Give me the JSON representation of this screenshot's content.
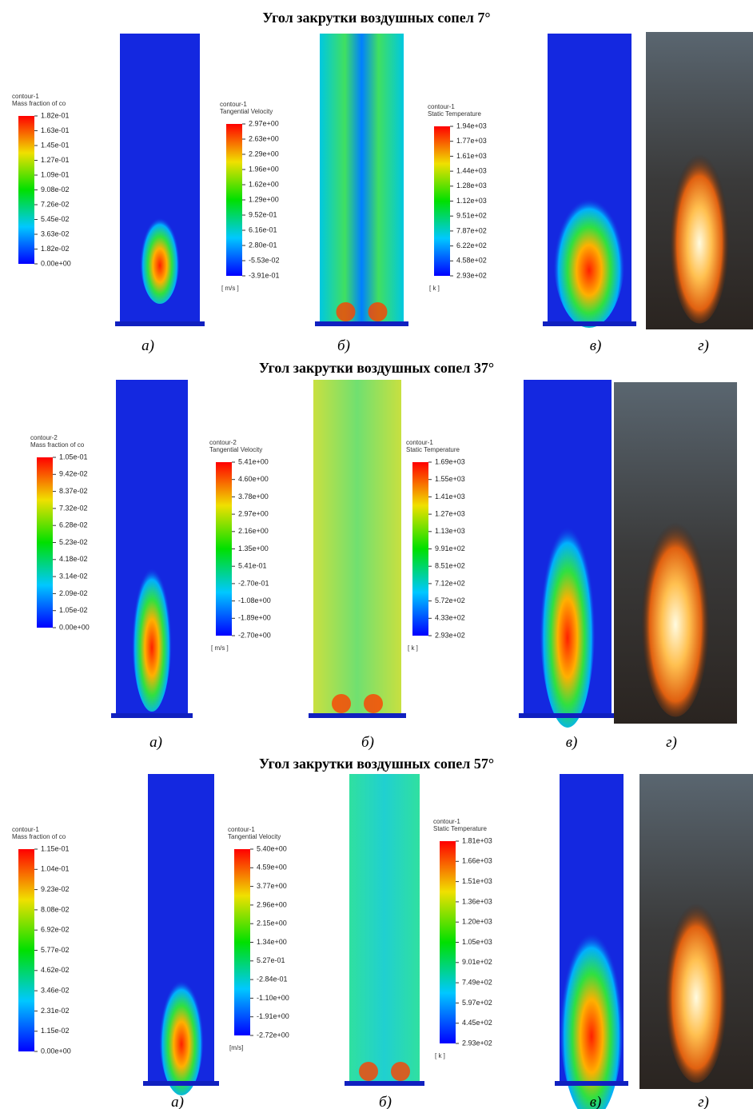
{
  "rows": [
    {
      "title": "Угол закрутки воздушных сопел 7°",
      "panels": [
        {
          "contour": "contour-1",
          "variable": "Mass fraction of co",
          "ticks": [
            "1.82e-01",
            "1.63e-01",
            "1.45e-01",
            "1.27e-01",
            "1.09e-01",
            "9.08e-02",
            "7.26e-02",
            "5.45e-02",
            "3.63e-02",
            "1.82e-02",
            "0.00e+00"
          ],
          "caption": "а)"
        },
        {
          "contour": "contour-1",
          "variable": "Tangential Velocity",
          "ticks": [
            "2.97e+00",
            "2.63e+00",
            "2.29e+00",
            "1.96e+00",
            "1.62e+00",
            "1.29e+00",
            "9.52e-01",
            "6.16e-01",
            "2.80e-01",
            "-5.53e-02",
            "-3.91e-01"
          ],
          "unit": "[ m/s ]",
          "caption": "б)"
        },
        {
          "contour": "contour-1",
          "variable": "Static Temperature",
          "ticks": [
            "1.94e+03",
            "1.77e+03",
            "1.61e+03",
            "1.44e+03",
            "1.28e+03",
            "1.12e+03",
            "9.51e+02",
            "7.87e+02",
            "6.22e+02",
            "4.58e+02",
            "2.93e+02"
          ],
          "unit": "[ k ]",
          "caption": "в)"
        }
      ],
      "photo_caption": "г)"
    },
    {
      "title": "Угол закрутки воздушных сопел 37°",
      "panels": [
        {
          "contour": "contour-2",
          "variable": "Mass fraction of co",
          "ticks": [
            "1.05e-01",
            "9.42e-02",
            "8.37e-02",
            "7.32e-02",
            "6.28e-02",
            "5.23e-02",
            "4.18e-02",
            "3.14e-02",
            "2.09e-02",
            "1.05e-02",
            "0.00e+00"
          ],
          "caption": "а)"
        },
        {
          "contour": "contour-2",
          "variable": "Tangential Velocity",
          "ticks": [
            "5.41e+00",
            "4.60e+00",
            "3.78e+00",
            "2.97e+00",
            "2.16e+00",
            "1.35e+00",
            "5.41e-01",
            "-2.70e-01",
            "-1.08e+00",
            "-1.89e+00",
            "-2.70e+00"
          ],
          "unit": "[ m/s ]",
          "caption": "б)"
        },
        {
          "contour": "contour-1",
          "variable": "Static Temperature",
          "ticks": [
            "1.69e+03",
            "1.55e+03",
            "1.41e+03",
            "1.27e+03",
            "1.13e+03",
            "9.91e+02",
            "8.51e+02",
            "7.12e+02",
            "5.72e+02",
            "4.33e+02",
            "2.93e+02"
          ],
          "unit": "[ k ]",
          "caption": "в)"
        }
      ],
      "photo_caption": "г)"
    },
    {
      "title": "Угол закрутки воздушных сопел 57°",
      "panels": [
        {
          "contour": "contour-1",
          "variable": "Mass fraction of co",
          "ticks": [
            "1.15e-01",
            "1.04e-01",
            "9.23e-02",
            "8.08e-02",
            "6.92e-02",
            "5.77e-02",
            "4.62e-02",
            "3.46e-02",
            "2.31e-02",
            "1.15e-02",
            "0.00e+00"
          ],
          "caption": "а)"
        },
        {
          "contour": "contour-1",
          "variable": "Tangential Velocity",
          "ticks": [
            "5.40e+00",
            "4.59e+00",
            "3.77e+00",
            "2.96e+00",
            "2.15e+00",
            "1.34e+00",
            "5.27e-01",
            "-2.84e-01",
            "-1.10e+00",
            "-1.91e+00",
            "-2.72e+00"
          ],
          "unit": "[m/s]",
          "caption": "б)"
        },
        {
          "contour": "contour-1",
          "variable": "Static Temperature",
          "ticks": [
            "1.81e+03",
            "1.66e+03",
            "1.51e+03",
            "1.36e+03",
            "1.20e+03",
            "1.05e+03",
            "9.01e+02",
            "7.49e+02",
            "5.97e+02",
            "4.45e+02",
            "2.93e+02"
          ],
          "unit": "[ k ]",
          "caption": "в)"
        }
      ],
      "photo_caption": "г)"
    }
  ]
}
